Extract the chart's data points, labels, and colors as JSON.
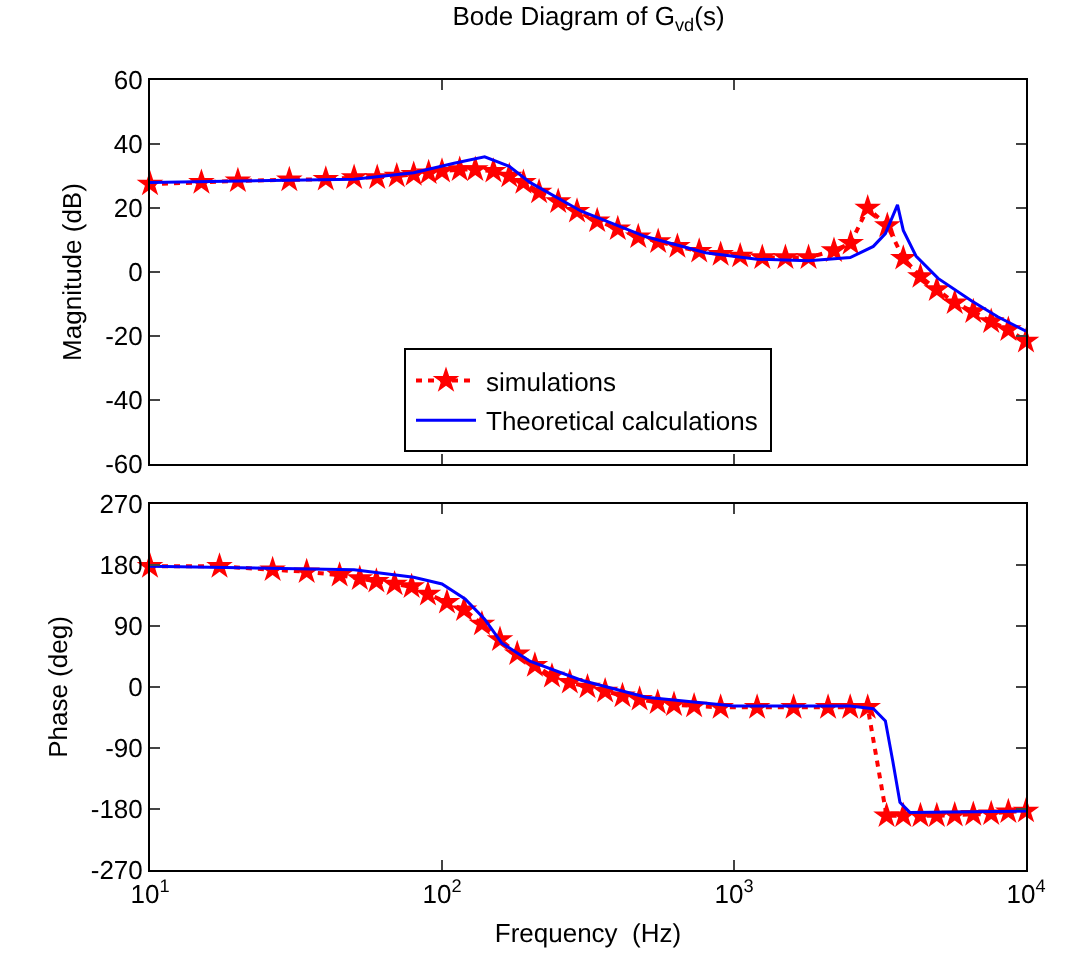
{
  "chart_data": [
    {
      "type": "line",
      "title": "Bode Diagram of G$_{vd}$(s)",
      "ylabel": "Magnitude (dB)",
      "log": "x",
      "grid": false,
      "legend": "bottom",
      "tick_labels": "y",
      "xlim": [
        10,
        10000
      ],
      "xticks": [
        {
          "value": 10,
          "label": null
        },
        {
          "value": 100,
          "label": null
        },
        {
          "value": 1000,
          "label": null
        },
        {
          "value": 10000,
          "label": null
        }
      ],
      "ylim": [
        -60,
        60
      ],
      "yticks": [
        -60,
        -40,
        -20,
        0,
        20,
        40,
        60
      ],
      "series": [
        {
          "name": "simulations",
          "color": "#ff0000",
          "line_style": "dotted",
          "marker": "star",
          "x": [
            10,
            15,
            20,
            30,
            40,
            50,
            60,
            70,
            80,
            90,
            100,
            115,
            130,
            150,
            170,
            190,
            215,
            250,
            290,
            340,
            400,
            470,
            550,
            640,
            760,
            900,
            1050,
            1250,
            1500,
            1800,
            2200,
            2510,
            2870,
            3350,
            3800,
            4350,
            4950,
            5700,
            6600,
            7600,
            8700,
            10000
          ],
          "values": [
            27.5,
            28,
            28.5,
            28.8,
            29,
            29.5,
            29.5,
            30,
            30.5,
            31,
            31.5,
            32,
            32,
            31.5,
            30,
            28,
            25,
            22,
            19,
            16,
            13.5,
            11,
            9.5,
            8,
            6.5,
            5.5,
            5,
            4.5,
            4.5,
            4.5,
            6.7,
            9,
            20,
            14.5,
            4.3,
            -1.4,
            -5.5,
            -9.6,
            -12.4,
            -15.5,
            -18,
            -21.6
          ]
        },
        {
          "name": "Theoretical calculations",
          "color": "#0000ff",
          "line_style": "solid",
          "marker": "none",
          "x": [
            10,
            50,
            80,
            110,
            140,
            170,
            200,
            300,
            500,
            800,
            1200,
            1800,
            2500,
            3000,
            3300,
            3630,
            3800,
            4200,
            5000,
            6500,
            8000,
            10000
          ],
          "values": [
            28,
            29,
            31,
            34,
            36,
            33,
            28,
            19,
            11,
            6,
            4,
            3.5,
            4.5,
            8,
            12,
            21,
            13,
            5,
            -2,
            -9,
            -14,
            -18.5
          ]
        }
      ]
    },
    {
      "type": "line",
      "xlabel": "Frequency  (Hz)",
      "ylabel": "Phase (deg)",
      "log": "x",
      "grid": false,
      "xlim": [
        10,
        10000
      ],
      "xticks": [
        {
          "value": 10,
          "label": "10$^{1}$"
        },
        {
          "value": 100,
          "label": "10$^{2}$"
        },
        {
          "value": 1000,
          "label": "10$^{3}$"
        },
        {
          "value": 10000,
          "label": "10$^{4}$"
        }
      ],
      "ylim": [
        -270,
        270
      ],
      "yticks": [
        -270,
        -180,
        -90,
        0,
        90,
        180,
        270
      ],
      "series": [
        {
          "color": "#ff0000",
          "line_style": "dotted",
          "marker": "star",
          "x": [
            10,
            17.3,
            26.3,
            34.4,
            44.6,
            52.3,
            59.6,
            68.8,
            78.7,
            89.5,
            104,
            119,
            137,
            158,
            181,
            208,
            238,
            274,
            315,
            362,
            415,
            475,
            548,
            623,
            730,
            900,
            1200,
            1600,
            2100,
            2500,
            2870,
            3330,
            3800,
            4350,
            4950,
            5700,
            6600,
            7600,
            8700,
            10000
          ],
          "values": [
            178,
            178,
            173,
            170,
            165,
            160,
            156,
            152,
            148,
            137,
            125,
            114,
            93,
            70,
            49,
            32,
            16,
            7,
            0,
            -6,
            -13,
            -18,
            -23,
            -26,
            -28,
            -30,
            -30,
            -30,
            -30,
            -30,
            -30,
            -190,
            -190,
            -190,
            -190,
            -189,
            -188,
            -187,
            -184,
            -183
          ]
        },
        {
          "color": "#0000ff",
          "line_style": "solid",
          "marker": "none",
          "x": [
            10,
            50,
            80,
            100,
            120,
            140,
            160,
            200,
            300,
            500,
            1000,
            2500,
            3000,
            3300,
            3500,
            3700,
            4000,
            10000
          ],
          "values": [
            178,
            173,
            162,
            152,
            130,
            100,
            65,
            38,
            10,
            -15,
            -28,
            -28,
            -32,
            -50,
            -110,
            -170,
            -185,
            -183
          ]
        }
      ]
    }
  ]
}
